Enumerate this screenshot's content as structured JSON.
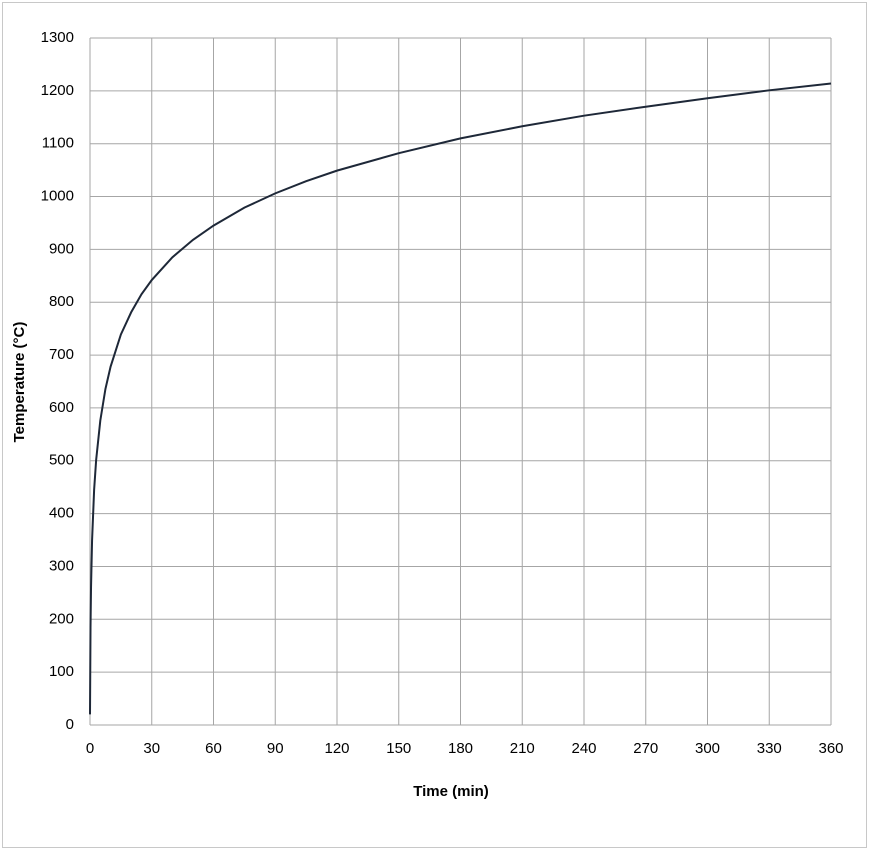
{
  "chart_data": {
    "type": "line",
    "x_label": "Time (min)",
    "y_label": "Temperature (°C)",
    "x": [
      0,
      0.25,
      0.5,
      1,
      2,
      3,
      5,
      7.5,
      10,
      15,
      20,
      25,
      30,
      40,
      50,
      60,
      75,
      90,
      105,
      120,
      150,
      180,
      210,
      240,
      270,
      300,
      330,
      360
    ],
    "series": [
      {
        "color": "#1e2838",
        "values": [
          20,
          185,
          261,
          349,
          445,
          502,
          576,
          636,
          678,
          739,
          781,
          815,
          842,
          885,
          918,
          945,
          979,
          1006,
          1029,
          1049,
          1082,
          1110,
          1133,
          1153,
          1170,
          1186,
          1201,
          1214
        ]
      }
    ],
    "xlim": [
      0,
      360
    ],
    "xticks": [
      0,
      30,
      60,
      90,
      120,
      150,
      180,
      210,
      240,
      270,
      300,
      330,
      360
    ],
    "ylim": [
      0,
      1300
    ],
    "yticks": [
      0,
      100,
      200,
      300,
      400,
      500,
      600,
      700,
      800,
      900,
      1000,
      1100,
      1200,
      1300
    ],
    "grid": true
  }
}
